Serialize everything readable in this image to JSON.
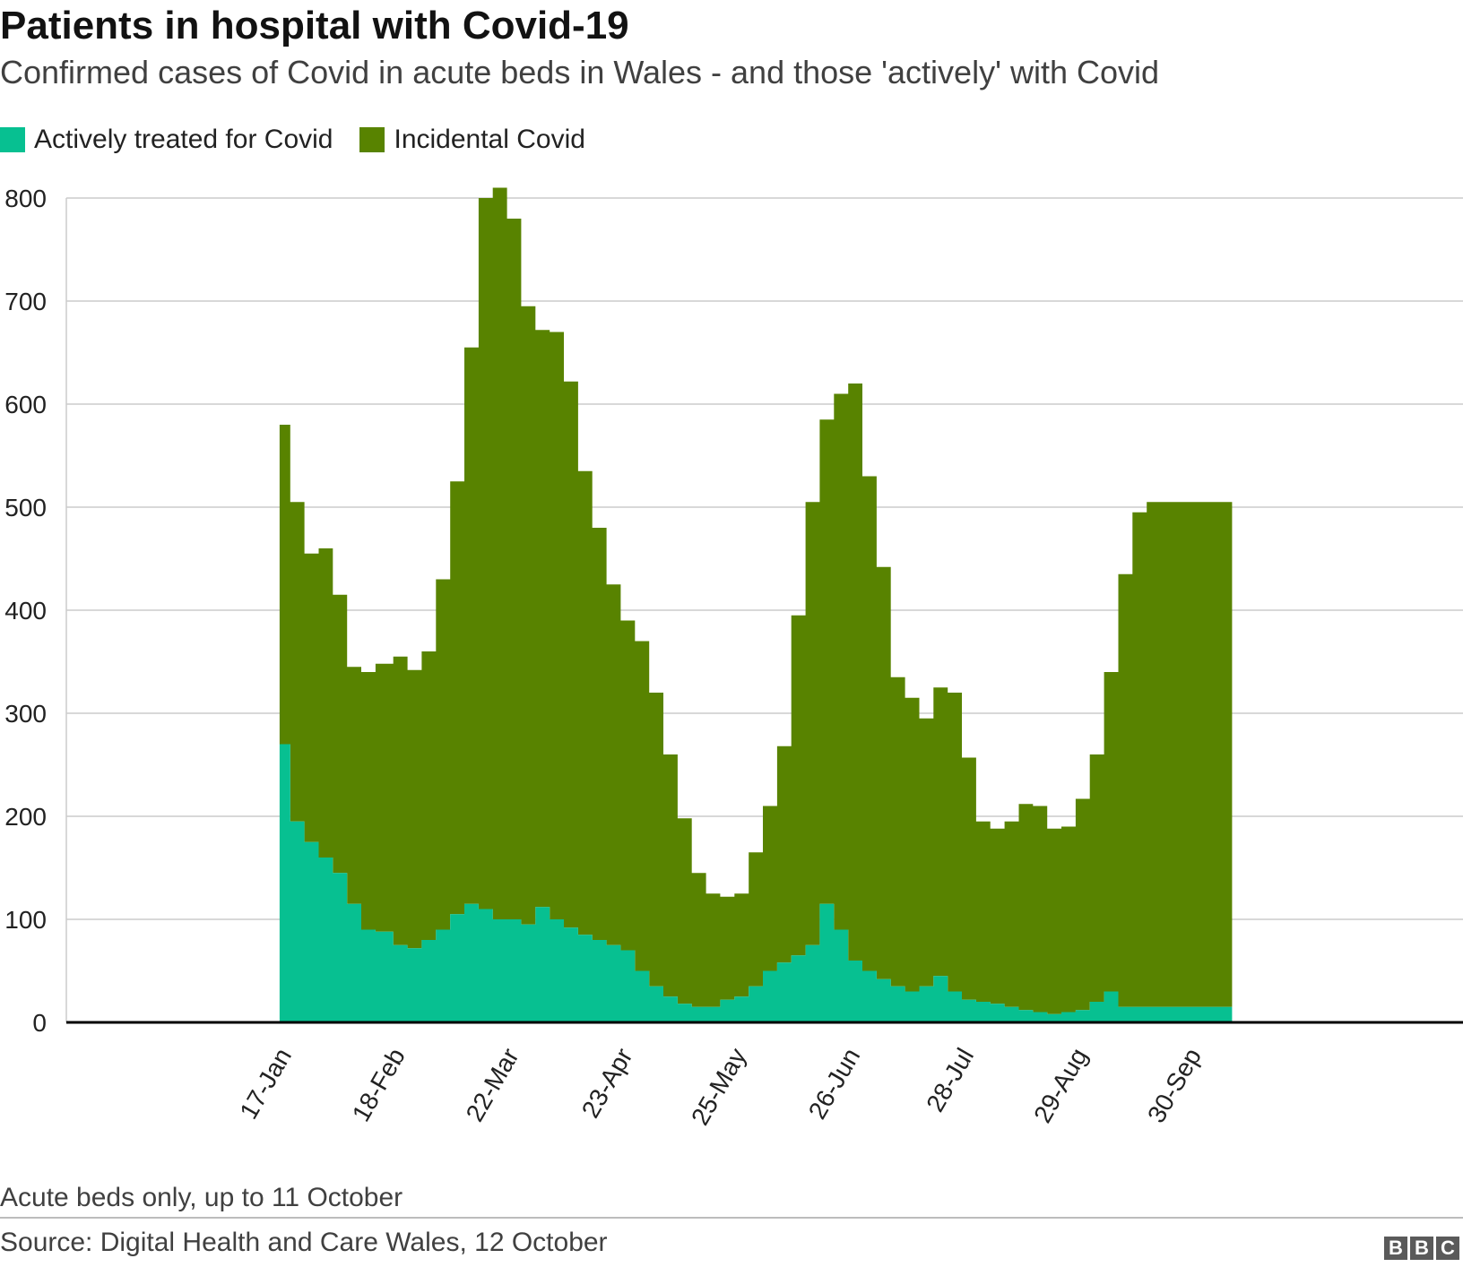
{
  "title": "Patients in hospital with Covid-19",
  "subtitle": "Confirmed cases of Covid in acute beds in Wales - and those 'actively' with Covid",
  "note": "Acute beds only, up to 11 October",
  "source": "Source: Digital Health and Care Wales, 12 October",
  "logo": [
    "B",
    "B",
    "C"
  ],
  "colors": {
    "active": "#07c091",
    "incidental": "#588300",
    "grid": "#cccccc",
    "axis": "#000000"
  },
  "chart_data": {
    "type": "area",
    "stacked": true,
    "title": "Patients in hospital with Covid-19",
    "subtitle": "Confirmed cases of Covid in acute beds in Wales - and those 'actively' with Covid",
    "legend": {
      "placement": "top-left",
      "entries": [
        "Actively treated for Covid",
        "Incidental Covid"
      ]
    },
    "xlabel": "",
    "ylabel": "",
    "ylim": [
      0,
      800
    ],
    "yticks": [
      0,
      100,
      200,
      300,
      400,
      500,
      600,
      700,
      800
    ],
    "grid": true,
    "x_start": "2021-01-17",
    "x_end": "2021-10-11",
    "xticks": [
      {
        "label": "17-Jan",
        "date": "2021-01-17"
      },
      {
        "label": "18-Feb",
        "date": "2021-02-18"
      },
      {
        "label": "22-Mar",
        "date": "2021-03-22"
      },
      {
        "label": "23-Apr",
        "date": "2021-04-23"
      },
      {
        "label": "25-May",
        "date": "2021-05-25"
      },
      {
        "label": "26-Jun",
        "date": "2021-06-26"
      },
      {
        "label": "28-Jul",
        "date": "2021-07-28"
      },
      {
        "label": "29-Aug",
        "date": "2021-08-29"
      },
      {
        "label": "30-Sep",
        "date": "2021-09-30"
      }
    ],
    "x_axis_range": [
      "2020-11-18",
      "2021-12-16"
    ],
    "x": [
      "2021-01-17",
      "2021-01-20",
      "2021-01-24",
      "2021-01-28",
      "2021-02-01",
      "2021-02-05",
      "2021-02-09",
      "2021-02-13",
      "2021-02-18",
      "2021-02-22",
      "2021-02-26",
      "2021-03-02",
      "2021-03-06",
      "2021-03-10",
      "2021-03-14",
      "2021-03-18",
      "2021-03-22",
      "2021-03-26",
      "2021-03-30",
      "2021-04-03",
      "2021-04-07",
      "2021-04-11",
      "2021-04-15",
      "2021-04-19",
      "2021-04-23",
      "2021-04-27",
      "2021-05-01",
      "2021-05-05",
      "2021-05-09",
      "2021-05-13",
      "2021-05-17",
      "2021-05-21",
      "2021-05-25",
      "2021-05-29",
      "2021-06-02",
      "2021-06-06",
      "2021-06-10",
      "2021-06-14",
      "2021-06-18",
      "2021-06-22",
      "2021-06-26",
      "2021-06-30",
      "2021-07-04",
      "2021-07-08",
      "2021-07-12",
      "2021-07-16",
      "2021-07-20",
      "2021-07-24",
      "2021-07-28",
      "2021-08-01",
      "2021-08-05",
      "2021-08-09",
      "2021-08-13",
      "2021-08-17",
      "2021-08-21",
      "2021-08-25",
      "2021-08-29",
      "2021-09-02",
      "2021-09-06",
      "2021-09-10",
      "2021-09-14",
      "2021-09-18",
      "2021-09-22",
      "2021-09-26",
      "2021-09-30",
      "2021-10-04",
      "2021-10-08",
      "2021-10-11"
    ],
    "series": [
      {
        "name": "Actively treated for Covid",
        "values": [
          270,
          195,
          175,
          160,
          145,
          115,
          90,
          88,
          75,
          72,
          80,
          90,
          105,
          115,
          110,
          100,
          100,
          95,
          112,
          100,
          92,
          85,
          80,
          75,
          70,
          50,
          35,
          25,
          18,
          15,
          15,
          22,
          25,
          35,
          50,
          58,
          65,
          75,
          115,
          90,
          60,
          50,
          42,
          35,
          30,
          35,
          45,
          30,
          22,
          20,
          18,
          15,
          12,
          10,
          8,
          10,
          12,
          20,
          30,
          15,
          15,
          15,
          15,
          15,
          15,
          15,
          15,
          15
        ]
      },
      {
        "name": "Incidental Covid",
        "values": [
          310,
          310,
          280,
          300,
          270,
          230,
          250,
          260,
          280,
          270,
          280,
          340,
          420,
          540,
          690,
          710,
          680,
          600,
          560,
          570,
          530,
          450,
          400,
          350,
          320,
          320,
          285,
          235,
          180,
          130,
          110,
          100,
          100,
          130,
          160,
          210,
          330,
          430,
          470,
          520,
          560,
          480,
          400,
          300,
          285,
          260,
          280,
          290,
          235,
          175,
          170,
          180,
          200,
          200,
          180,
          180,
          205,
          240,
          310,
          420,
          480,
          490,
          490,
          490,
          490,
          490,
          490,
          490
        ]
      }
    ]
  }
}
